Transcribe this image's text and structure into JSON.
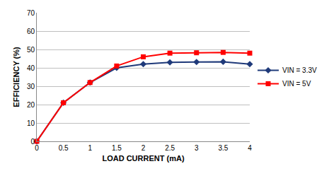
{
  "chart_data": {
    "type": "line",
    "x_label": "LOAD CURRENT (mA)",
    "y_label": "EFFICIENCY (%)",
    "x": [
      0,
      0.5,
      1,
      1.5,
      2,
      2.5,
      3,
      3.5,
      4
    ],
    "series": [
      {
        "name": "VIN = 3.3V",
        "color": "#1f3a7a",
        "marker": "diamond",
        "values": [
          0,
          21,
          32,
          40,
          42,
          43,
          43.2,
          43.3,
          42
        ]
      },
      {
        "name": "VIN = 5V",
        "color": "#ff0000",
        "marker": "square",
        "values": [
          0,
          21,
          32,
          41,
          46,
          48,
          48.2,
          48.4,
          48
        ]
      }
    ],
    "xlim": [
      0,
      4
    ],
    "xticks": [
      0,
      0.5,
      1,
      1.5,
      2,
      2.5,
      3,
      3.5,
      4
    ],
    "ylim": [
      0,
      70
    ],
    "yticks": [
      0,
      10,
      20,
      30,
      40,
      50,
      60,
      70
    ],
    "grid": true,
    "legend": "right"
  }
}
